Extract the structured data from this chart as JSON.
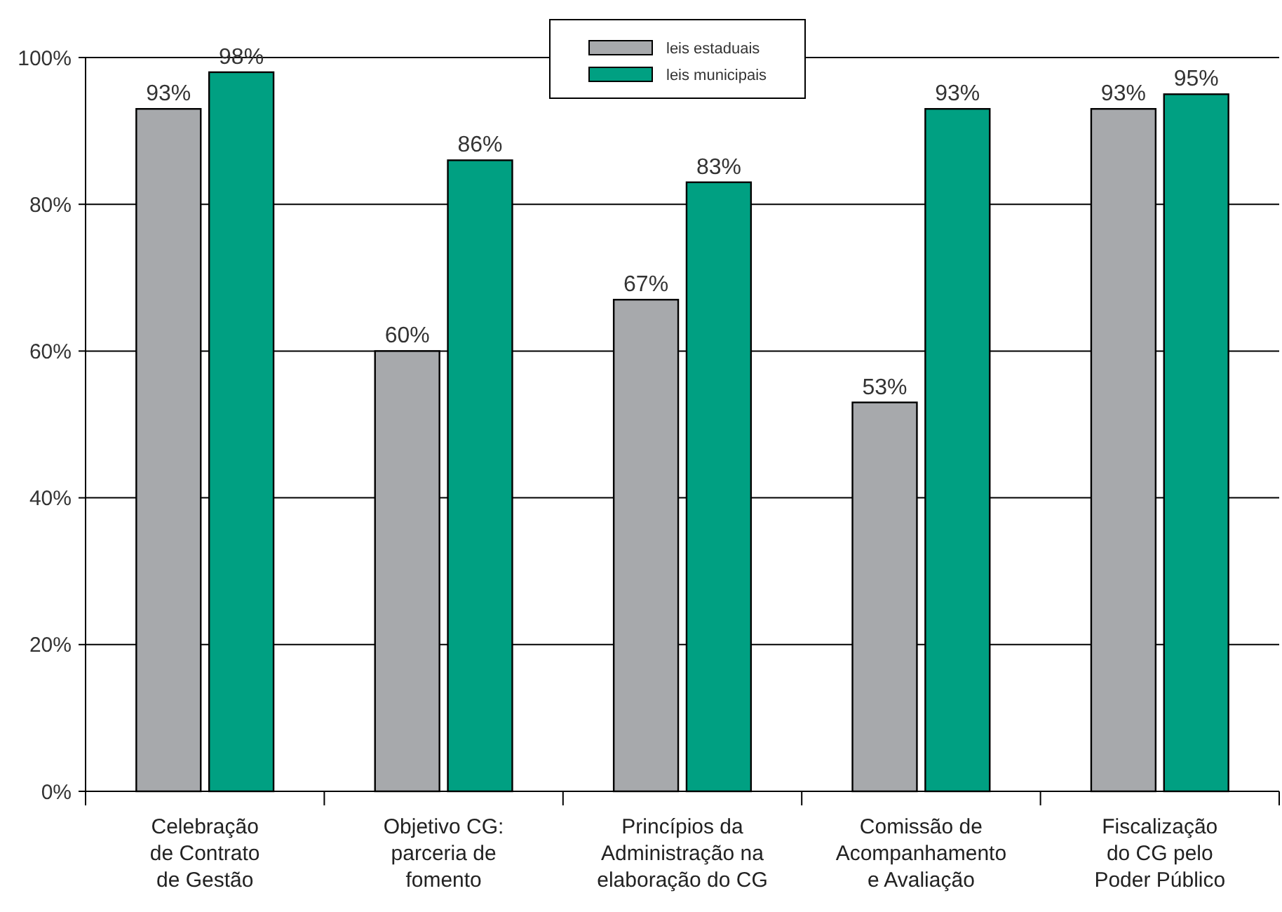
{
  "chart_data": {
    "type": "bar",
    "categories": [
      "Celebração\nde Contrato\nde Gestão",
      "Objetivo CG:\nparceria de\nfomento",
      "Princípios da\nAdministração na\nelaboração do CG",
      "Comissão de\nAcompanhamento\ne Avaliação",
      "Fiscalização\ndo CG pelo\nPoder Público"
    ],
    "series": [
      {
        "name": "leis estaduais",
        "color": "#a7a9ac",
        "values": [
          93,
          60,
          67,
          53,
          93
        ],
        "value_labels": [
          "93%",
          "60%",
          "67%",
          "53%",
          "93%"
        ]
      },
      {
        "name": "leis municipais",
        "color": "#00a082",
        "values": [
          98,
          86,
          83,
          93,
          95
        ],
        "value_labels": [
          "98%",
          "86%",
          "83%",
          "93%",
          "95%"
        ]
      }
    ],
    "ylim": [
      0,
      100
    ],
    "yticks": [
      {
        "value": 0,
        "label": "0%"
      },
      {
        "value": 20,
        "label": "20%"
      },
      {
        "value": 40,
        "label": "40%"
      },
      {
        "value": 60,
        "label": "60%"
      },
      {
        "value": 80,
        "label": "80%"
      },
      {
        "value": 100,
        "label": "100%"
      }
    ],
    "grid": "y",
    "legend": "top"
  }
}
